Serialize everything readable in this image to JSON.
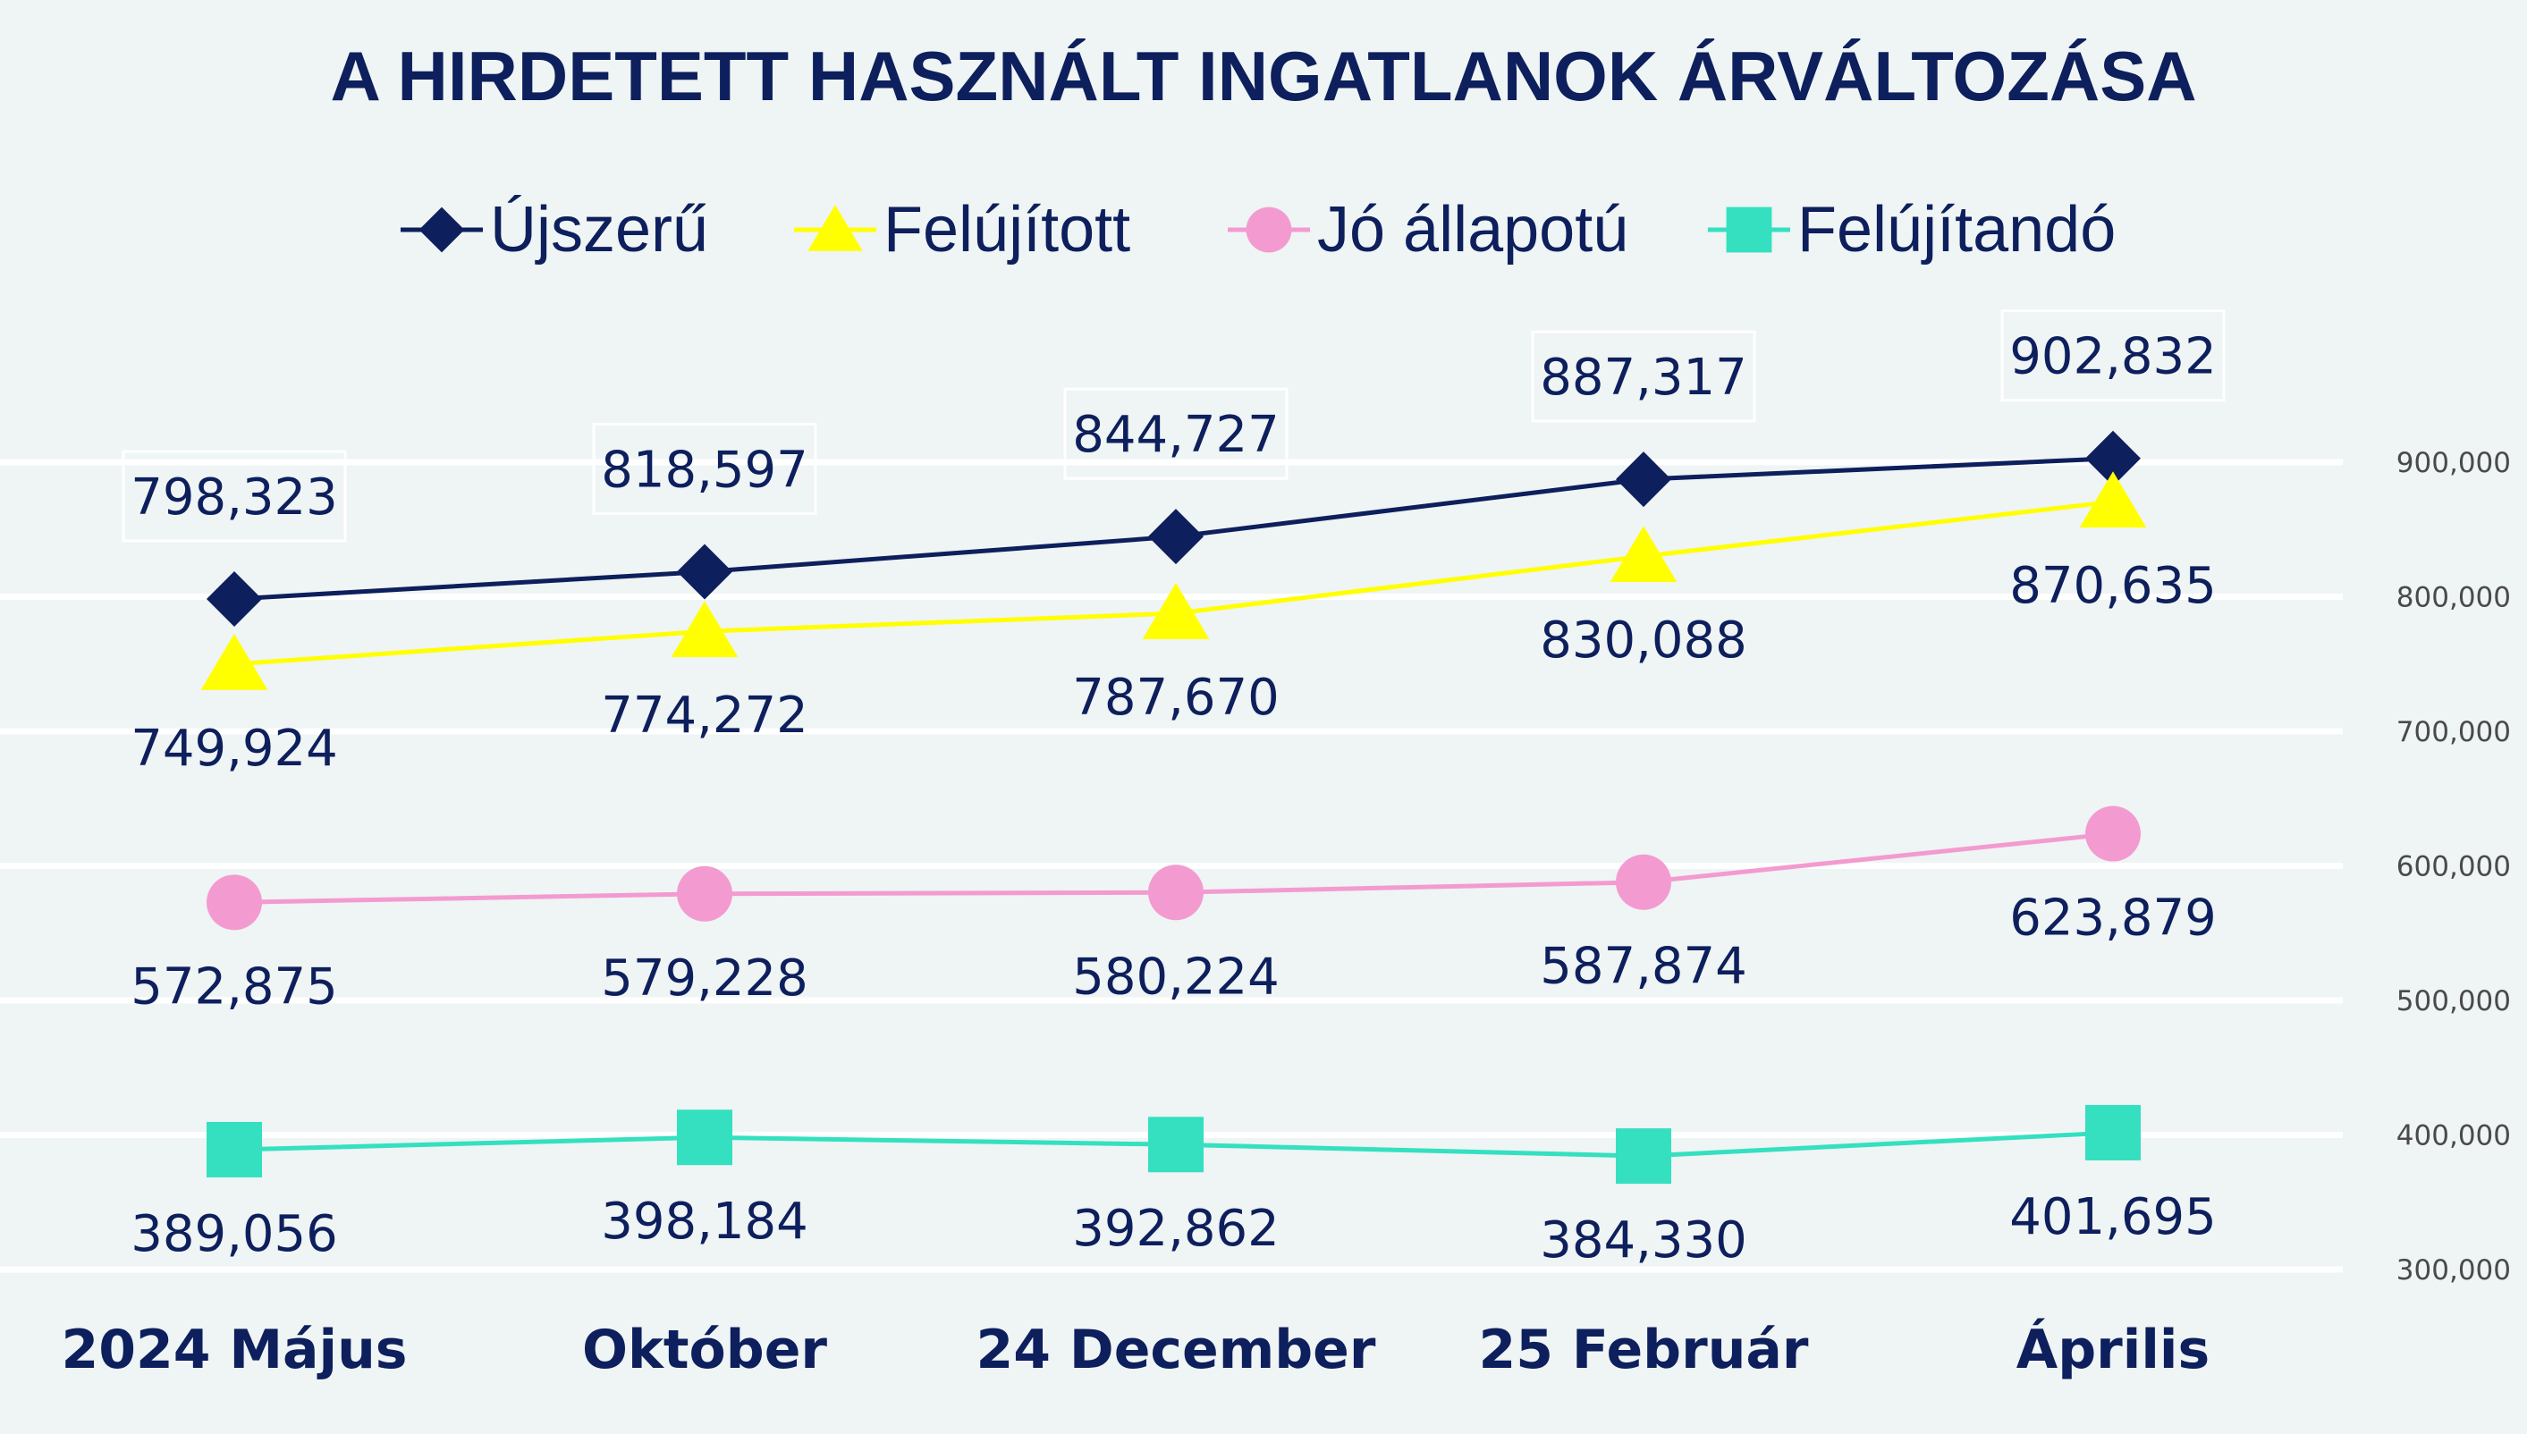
{
  "chart_data": {
    "type": "line",
    "title": "A HIRDETETT HASZNÁLT INGATLANOK ÁRVÁLTOZÁSA",
    "xlabel": "",
    "ylabel": "",
    "categories": [
      "2024 Május",
      "Október",
      "24 December",
      "25 Február",
      "Április"
    ],
    "ylim": [
      300000,
      900000
    ],
    "yticks": [
      900000,
      800000,
      700000,
      600000,
      500000,
      400000,
      300000
    ],
    "ytick_labels": [
      "900,000",
      "800,000",
      "700,000",
      "600,000",
      "500,000",
      "400,000",
      "300,000"
    ],
    "y_axis_side": "right",
    "grid": true,
    "legend_position": "top",
    "series": [
      {
        "name": "Újszerű",
        "marker": "diamond",
        "color": "#0d1f5c",
        "values": [
          798323,
          818597,
          844727,
          887317,
          902832
        ],
        "labels": [
          "798,323",
          "818,597",
          "844,727",
          "887,317",
          "902,832"
        ],
        "label_position": "above-boxed"
      },
      {
        "name": "Felújított",
        "marker": "triangle",
        "color": "#ffff00",
        "values": [
          749924,
          774272,
          787670,
          830088,
          870635
        ],
        "labels": [
          "749,924",
          "774,272",
          "787,670",
          "830,088",
          "870,635"
        ],
        "label_position": "below"
      },
      {
        "name": "Jó állapotú",
        "marker": "circle",
        "color": "#f39bd0",
        "values": [
          572875,
          579228,
          580224,
          587874,
          623879
        ],
        "labels": [
          "572,875",
          "579,228",
          "580,224",
          "587,874",
          "623,879"
        ],
        "label_position": "below"
      },
      {
        "name": "Felújítandó",
        "marker": "square",
        "color": "#34e0c0",
        "values": [
          389056,
          398184,
          392862,
          384330,
          401695
        ],
        "labels": [
          "389,056",
          "398,184",
          "392,862",
          "384,330",
          "401,695"
        ],
        "label_position": "below"
      }
    ],
    "colors": {
      "background": "#eff4f4",
      "text": "#0d1f5c",
      "gridline": "#ffffff",
      "tick_text": "#4a4a4a"
    }
  }
}
